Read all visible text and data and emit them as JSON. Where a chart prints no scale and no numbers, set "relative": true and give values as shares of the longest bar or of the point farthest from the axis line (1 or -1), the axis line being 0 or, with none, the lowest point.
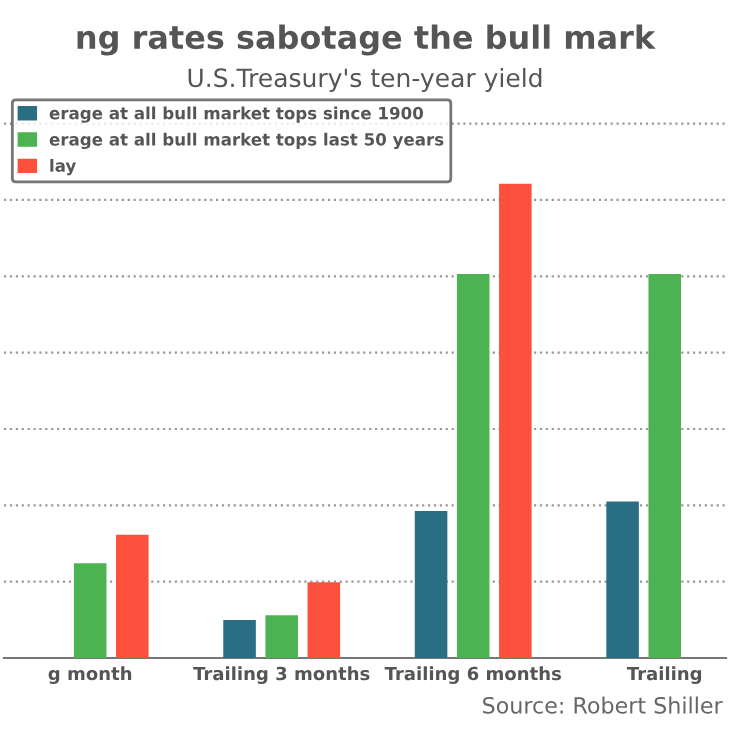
{
  "chart_data": {
    "type": "bar",
    "title": "ng rates sabotage the bull mark",
    "subtitle": "U.S.Treasury's ten-year yield",
    "categories": [
      "g month",
      "Trailing 3 months",
      "Trailing 6 months",
      "Trailing"
    ],
    "relative": true,
    "grid": "y",
    "legend": "top left",
    "series": [
      {
        "name": "erage at all bull market tops since 1900",
        "color": "#2a6e84",
        "values": [
          null,
          0.08,
          0.31,
          0.33
        ]
      },
      {
        "name": "erage at all bull market tops last 50 years",
        "color": "#4db352",
        "values": [
          0.2,
          0.09,
          0.81,
          0.81
        ]
      },
      {
        "name": "lay",
        "color": "#fc503c",
        "values": [
          0.26,
          0.16,
          1,
          null
        ]
      }
    ],
    "annotations": [
      "Source: Robert Shiller"
    ]
  }
}
